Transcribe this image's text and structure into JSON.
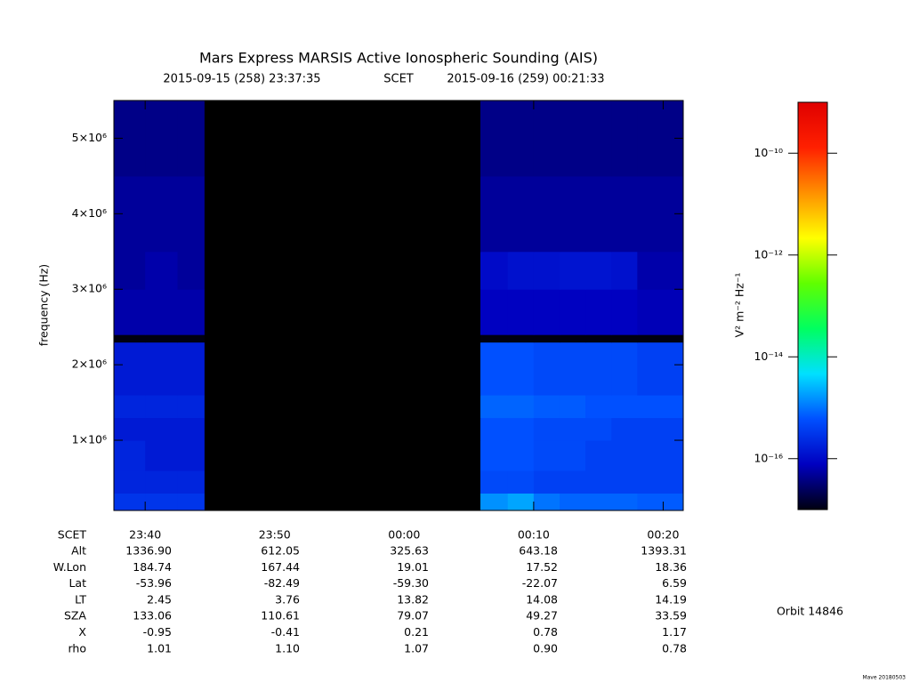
{
  "chart_data": {
    "type": "heatmap",
    "title": "Mars Express MARSIS Active Ionospheric Sounding (AIS)",
    "subtitle": {
      "start": "2015-09-15 (258) 23:37:35",
      "scet": "SCET",
      "end": "2015-09-16 (259) 00:21:33"
    },
    "y_label": "frequency (Hz)",
    "xlim": [
      "2015-09-15T23:37:35",
      "2015-09-16T00:21:33"
    ],
    "xticks": [
      {
        "value": "2015-09-15T23:40",
        "label": "23:40"
      },
      {
        "value": "2015-09-15T23:50",
        "label": "23:50"
      },
      {
        "value": "2015-09-16T00:00",
        "label": "00:00"
      },
      {
        "value": "2015-09-16T00:10",
        "label": "00:10"
      },
      {
        "value": "2015-09-16T00:20",
        "label": "00:20"
      }
    ],
    "ylim": [
      70000,
      5500000
    ],
    "yticks": [
      {
        "value": 1000000,
        "label": "1×10⁶"
      },
      {
        "value": 2000000,
        "label": "2×10⁶"
      },
      {
        "value": 3000000,
        "label": "3×10⁶"
      },
      {
        "value": 4000000,
        "label": "4×10⁶"
      },
      {
        "value": 5000000,
        "label": "5×10⁶"
      }
    ],
    "x_edges": [
      "2015-09-15T23:37:35",
      "2015-09-15T23:40",
      "2015-09-15T23:42:30",
      "2015-09-15T23:44:35",
      "2015-09-16T00:05:53",
      "2015-09-16T00:08",
      "2015-09-16T00:10",
      "2015-09-16T00:12",
      "2015-09-16T00:14",
      "2015-09-16T00:16",
      "2015-09-16T00:18",
      "2015-09-16T00:21:33"
    ],
    "y_edges": [
      70000,
      300000,
      600000,
      1000000,
      1300000,
      1600000,
      2300000,
      2400000,
      3000000,
      3500000,
      4500000,
      5500000
    ],
    "z": [
      [
        3e-16,
        3e-16,
        3e-16,
        null,
        1.5e-15,
        2e-15,
        1e-15,
        8e-16,
        8e-16,
        8e-16,
        7e-16
      ],
      [
        2e-16,
        2e-16,
        2e-16,
        null,
        5e-16,
        5e-16,
        4e-16,
        4e-16,
        4e-16,
        4e-16,
        4e-16
      ],
      [
        2e-16,
        1.5e-16,
        1.5e-16,
        null,
        6e-16,
        6e-16,
        5e-16,
        5e-16,
        4e-16,
        4e-16,
        4e-16
      ],
      [
        1.5e-16,
        1.5e-16,
        1.5e-16,
        null,
        6e-16,
        6e-16,
        5e-16,
        5e-16,
        5e-16,
        4e-16,
        4e-16
      ],
      [
        2e-16,
        2e-16,
        2e-16,
        null,
        8e-16,
        8e-16,
        7e-16,
        7e-16,
        6e-16,
        6e-16,
        6e-16
      ],
      [
        1.5e-16,
        1.5e-16,
        1.5e-16,
        null,
        6e-16,
        6e-16,
        5e-16,
        5e-16,
        5e-16,
        5e-16,
        4e-16
      ],
      [
        1e-17,
        1e-17,
        1e-17,
        null,
        1e-17,
        1e-17,
        1e-17,
        1e-17,
        1e-17,
        1e-17,
        1e-17
      ],
      [
        6e-17,
        6e-17,
        6e-17,
        null,
        8e-17,
        8e-17,
        8e-17,
        8e-17,
        8e-17,
        8e-17,
        7e-17
      ],
      [
        5e-17,
        6e-17,
        5e-17,
        null,
        1e-16,
        1.2e-16,
        1.2e-16,
        1.3e-16,
        1.3e-16,
        1.2e-16,
        6e-17
      ],
      [
        5e-17,
        5e-17,
        5e-17,
        null,
        5e-17,
        5e-17,
        5e-17,
        5e-17,
        5e-17,
        5e-17,
        5e-17
      ],
      [
        4e-17,
        4e-17,
        4e-17,
        null,
        4e-17,
        4e-17,
        4e-17,
        4e-17,
        4e-17,
        4e-17,
        4e-17
      ]
    ],
    "colorbar": {
      "label": "V² m⁻² Hz⁻¹",
      "log": true,
      "lim": [
        1e-17,
        1e-09
      ],
      "ticks": [
        {
          "value": 1e-10,
          "label": "10⁻¹⁰"
        },
        {
          "value": 1e-12,
          "label": "10⁻¹²"
        },
        {
          "value": 1e-14,
          "label": "10⁻¹⁴"
        },
        {
          "value": 1e-16,
          "label": "10⁻¹⁶"
        }
      ],
      "colormap": [
        "#000010",
        "#0000c0",
        "#0050ff",
        "#00e0ff",
        "#00ff60",
        "#60ff00",
        "#ffff00",
        "#ff9000",
        "#ff2000",
        "#e00000"
      ],
      "null_color": "#000000"
    }
  },
  "ephemeris": {
    "time_label": "SCET",
    "rows": [
      {
        "label": "Alt",
        "values": [
          "1336.90",
          "612.05",
          "325.63",
          "643.18",
          "1393.31"
        ]
      },
      {
        "label": "W.Lon",
        "values": [
          "184.74",
          "167.44",
          "19.01",
          "17.52",
          "18.36"
        ]
      },
      {
        "label": "Lat",
        "values": [
          "-53.96",
          "-82.49",
          "-59.30",
          "-22.07",
          "6.59"
        ]
      },
      {
        "label": "LT",
        "values": [
          "2.45",
          "3.76",
          "13.82",
          "14.08",
          "14.19"
        ]
      },
      {
        "label": "SZA",
        "values": [
          "133.06",
          "110.61",
          "79.07",
          "49.27",
          "33.59"
        ]
      },
      {
        "label": "X",
        "values": [
          "-0.95",
          "-0.41",
          "0.21",
          "0.78",
          "1.17"
        ]
      },
      {
        "label": "rho",
        "values": [
          "1.01",
          "1.10",
          "1.07",
          "0.90",
          "0.78"
        ]
      }
    ]
  },
  "orbit": "Orbit 14846",
  "credit": "Mave 20180503"
}
